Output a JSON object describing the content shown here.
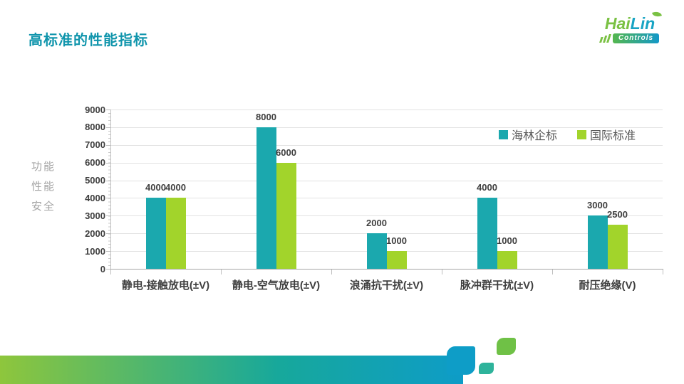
{
  "slide": {
    "title": "高标准的性能指标",
    "logo": {
      "brand_green": "Hai",
      "brand_teal": "Lin",
      "sub": "Controls"
    }
  },
  "chart_data": {
    "type": "bar",
    "title": "",
    "categories": [
      "静电-接触放电(±V)",
      "静电-空气放电(±V)",
      "浪涌抗干扰(±V)",
      "脉冲群干扰(±V)",
      "耐压绝缘(V)"
    ],
    "series": [
      {
        "name": "海林企标",
        "color": "#1BA8AE",
        "values": [
          4000,
          8000,
          2000,
          4000,
          3000
        ]
      },
      {
        "name": "国际标准",
        "color": "#A2D42B",
        "values": [
          4000,
          6000,
          1000,
          1000,
          2500
        ]
      }
    ],
    "y_axis_title_lines": [
      "功能",
      "性能",
      "安全"
    ],
    "ylim": [
      0,
      9000
    ],
    "ytick_step": 1000,
    "grid": true,
    "data_labels": true,
    "legend_position": "top-right"
  },
  "colors": {
    "title": "#1095AC",
    "axis": "#BFBFBF",
    "gridline": "#E2E2E2",
    "tick_label": "#3F3F3F",
    "category_label": "#3F3F3F",
    "value_label": "#3F3F3F",
    "y_axis_title": "#A3A3A3",
    "legend_text": "#595959",
    "footer_gradient_start": "#8EC63C",
    "footer_gradient_mid": "#17A89B",
    "footer_gradient_end": "#0E9CC7",
    "footer_square_blue": "#0E9DC7",
    "footer_square_teal": "#2EB39B",
    "footer_square_green": "#6FC146"
  }
}
